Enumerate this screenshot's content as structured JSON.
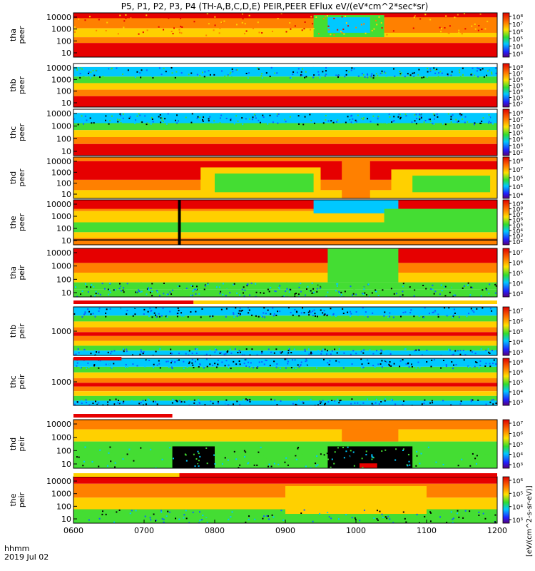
{
  "chart_data": {
    "type": "heatmap",
    "title": "P5, P1, P2, P3, P4 (TH-A,B,C,D,E) PEIR,PEER EFlux eV/(eV*cm^2*sec*sr)",
    "x_ticks": [
      "0600",
      "0700",
      "0800",
      "0900",
      "1000",
      "1100",
      "1200"
    ],
    "x_axis_label": "hhmm",
    "date_label": "2019 Jul 02",
    "colorbar_label": "[eV/(cm^2-s-sr-eV)]",
    "panels": [
      {
        "id": "tha-peer",
        "ylabel": [
          "tha",
          "peer"
        ],
        "yticks": [
          "10000",
          "1000",
          "100",
          "10"
        ],
        "cb_ticks": [
          "10⁸",
          "10⁷",
          "10⁶",
          "10⁵",
          "10⁴",
          "10³"
        ],
        "scheme": "tha_e"
      },
      {
        "id": "thb-peer",
        "ylabel": [
          "thb",
          "peer"
        ],
        "yticks": [
          "10000",
          "1000",
          "100",
          "10"
        ],
        "cb_ticks": [
          "10⁸",
          "10⁷",
          "10⁶",
          "10⁵",
          "10⁴",
          "10³",
          "10²"
        ],
        "scheme": "thbc_e"
      },
      {
        "id": "thc-peer",
        "ylabel": [
          "thc",
          "peer"
        ],
        "yticks": [
          "10000",
          "1000",
          "100",
          "10"
        ],
        "cb_ticks": [
          "10⁸",
          "10⁷",
          "10⁶",
          "10⁵",
          "10⁴",
          "10³",
          "10²"
        ],
        "scheme": "thbc_e"
      },
      {
        "id": "thd-peer",
        "ylabel": [
          "thd",
          "peer"
        ],
        "yticks": [
          "10000",
          "1000",
          "100",
          "10"
        ],
        "cb_ticks": [
          "10⁸",
          "10⁷",
          "10⁶",
          "10⁵",
          "10⁴"
        ],
        "scheme": "thd_e"
      },
      {
        "id": "the-peer",
        "ylabel": [
          "the",
          "peer"
        ],
        "yticks": [
          "10000",
          "1000",
          "100",
          "10"
        ],
        "cb_ticks": [
          "10⁹",
          "10⁸",
          "10⁷",
          "10⁶",
          "10⁵",
          "10⁴",
          "10³",
          "10²"
        ],
        "scheme": "the_e"
      },
      {
        "id": "tha-peir",
        "ylabel": [
          "tha",
          "peir"
        ],
        "yticks": [
          "10000",
          "1000",
          "100",
          "10"
        ],
        "cb_ticks": [
          "10⁷",
          "10⁶",
          "10⁵",
          "10⁴",
          "10³"
        ],
        "scheme": "tha_i"
      },
      {
        "id": "thb-peir",
        "ylabel": [
          "thb",
          "peir"
        ],
        "yticks": [
          "1000"
        ],
        "cb_ticks": [
          "10⁷",
          "10⁶",
          "10⁵",
          "10⁴",
          "10³"
        ],
        "scheme": "thbc_i"
      },
      {
        "id": "thc-peir",
        "ylabel": [
          "thc",
          "peir"
        ],
        "yticks": [
          "1000"
        ],
        "cb_ticks": [
          "10⁸",
          "10⁶",
          "10⁵",
          "10⁴",
          "10³"
        ],
        "scheme": "thbc_i"
      },
      {
        "id": "thd-peir",
        "ylabel": [
          "thd",
          "peir"
        ],
        "yticks": [
          "10000",
          "1000",
          "100",
          "10"
        ],
        "cb_ticks": [
          "10⁷",
          "10⁶",
          "10⁵",
          "10⁴",
          "10³"
        ],
        "scheme": "thd_i"
      },
      {
        "id": "the-peir",
        "ylabel": [
          "the",
          "peir"
        ],
        "yticks": [
          "10000",
          "1000",
          "100",
          "10"
        ],
        "cb_ticks": [
          "10⁶",
          "10⁵",
          "10⁴",
          "10³"
        ],
        "scheme": "the_i"
      }
    ]
  },
  "colors": {
    "red": "#e60000",
    "orange": "#ff8000",
    "yellow": "#ffd000",
    "green": "#44dd33",
    "cyan": "#00c8ff",
    "blue": "#1060ff",
    "black": "#000000",
    "white": "#ffffff"
  }
}
